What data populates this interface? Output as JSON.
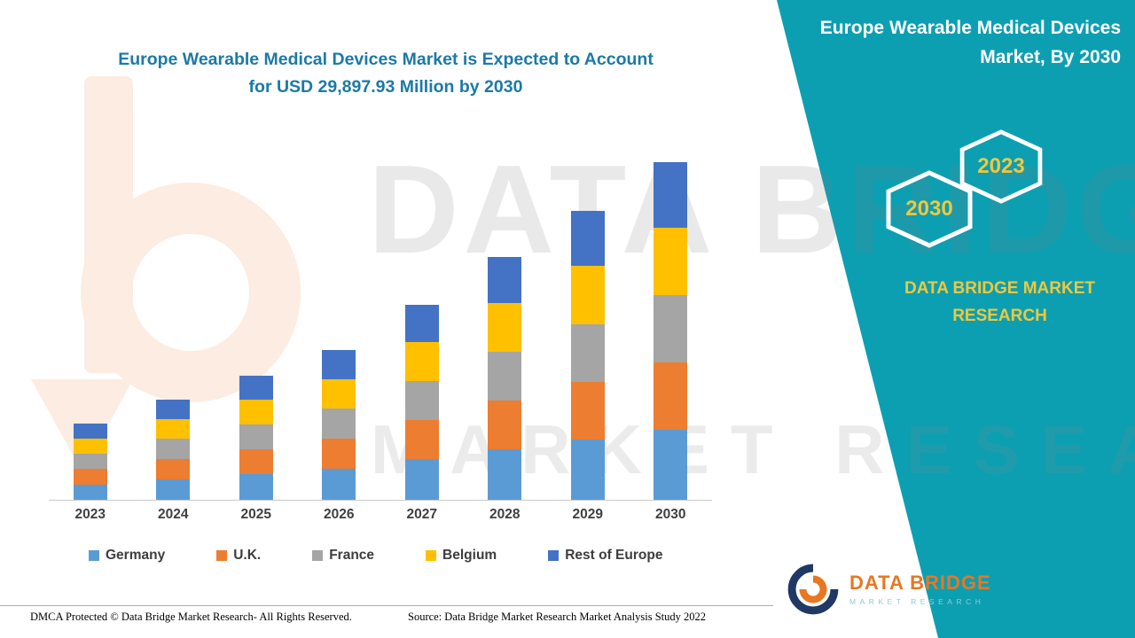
{
  "colors": {
    "panel_teal": "#0C9FB2",
    "title_blue": "#1B7AA6",
    "hex_label_yellow": "#F0C83C",
    "brand_yellow": "#EFC83C",
    "logo_orange": "#E87722",
    "logo_navy": "#1F3864",
    "axis_text": "#404040"
  },
  "chart_title": {
    "line1": "Europe Wearable Medical Devices Market is Expected to Account",
    "line2": "for USD 29,897.93 Million by 2030"
  },
  "side_panel": {
    "title_line1": "Europe Wearable Medical Devices",
    "title_line2": "Market, By 2030",
    "hexagon_back_label": "2030",
    "hexagon_front_label": "2023",
    "brand_line1": "DATA BRIDGE MARKET",
    "brand_line2": "RESEARCH"
  },
  "watermark": {
    "letter": "b",
    "line1": "DATA BRIDGE",
    "line2": "MARKET RESEARCH"
  },
  "footer_logo": {
    "name": "DATA BRIDGE",
    "sub": "MARKET RESEARCH"
  },
  "footer": {
    "left": "DMCA Protected © Data Bridge Market Research- All Rights Reserved.",
    "source": "Source: Data Bridge Market Research Market Analysis Study 2022"
  },
  "chart_data": {
    "type": "bar",
    "stacked": true,
    "title": "Europe Wearable Medical Devices Market is Expected to Account for USD 29,897.93 Million by 2030",
    "unit": "USD Million",
    "ylim": [
      0,
      30000
    ],
    "grid": false,
    "legend_position": "bottom",
    "highlight_total_2030": 29897.93,
    "categories": [
      "2023",
      "2024",
      "2025",
      "2026",
      "2027",
      "2028",
      "2029",
      "2030"
    ],
    "series": [
      {
        "name": "Germany",
        "color": "#5B9BD5",
        "values": [
          1450,
          1900,
          2350,
          2800,
          3650,
          4550,
          5400,
          6300
        ]
      },
      {
        "name": "U.K.",
        "color": "#ED7D31",
        "values": [
          1350,
          1780,
          2200,
          2650,
          3450,
          4300,
          5100,
          5950
        ]
      },
      {
        "name": "France",
        "color": "#A5A5A5",
        "values": [
          1350,
          1780,
          2200,
          2650,
          3450,
          4300,
          5100,
          5950
        ]
      },
      {
        "name": "Belgium",
        "color": "#FFC000",
        "values": [
          1350,
          1780,
          2200,
          2650,
          3450,
          4300,
          5100,
          5950
        ]
      },
      {
        "name": "Rest of Europe",
        "color": "#4472C4",
        "values": [
          1300,
          1700,
          2100,
          2550,
          3300,
          4100,
          4900,
          5747.93
        ]
      }
    ]
  }
}
